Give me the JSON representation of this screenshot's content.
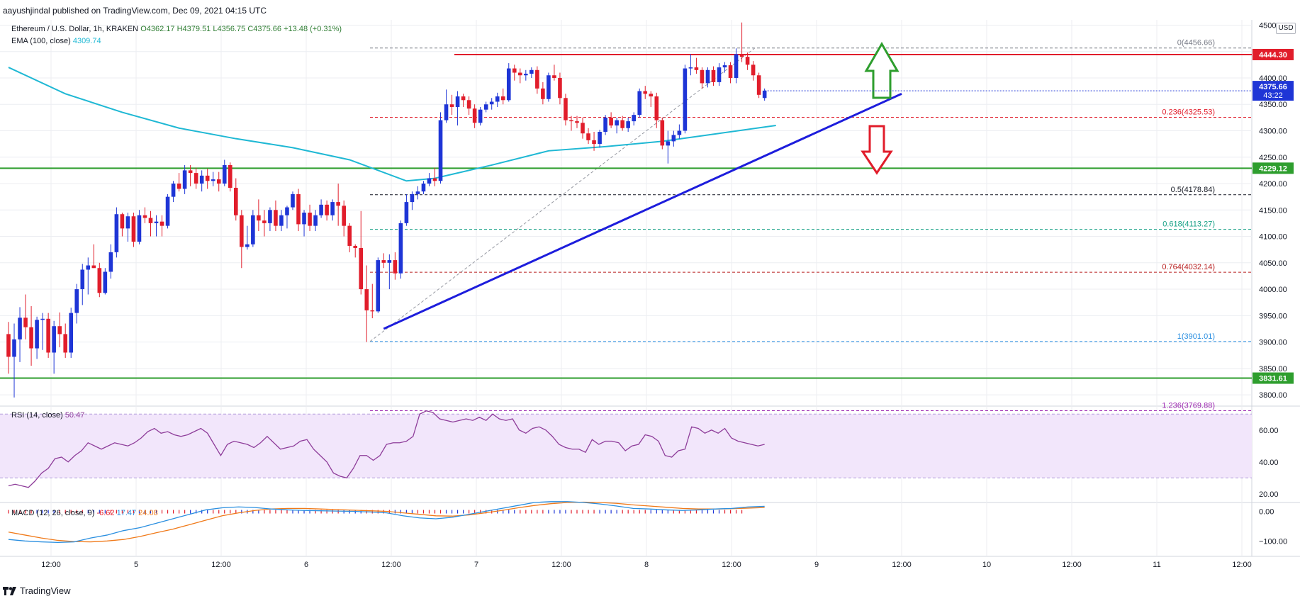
{
  "page": {
    "publisher_line": "aayushjindal published on TradingView.com, Dec 09, 2021 04:15 UTC",
    "watermark": "TradingView",
    "currency_label": "USD"
  },
  "header": {
    "symbol": "Ethereum / U.S. Dollar, 1h, KRAKEN",
    "open": "O4362.17",
    "high": "H4379.51",
    "low": "L4356.75",
    "close": "C4375.66",
    "change": "+13.48 (+0.31%)",
    "ema_label": "EMA (100, close)",
    "ema_value": "4309.74",
    "rsi_label": "RSI (14, close)",
    "rsi_value": "50.47",
    "macd_label": "MACD (12, 26, close, 9)",
    "macd_hist": "-6.62",
    "macd_value": "17.47",
    "macd_signal": "24.08"
  },
  "colors": {
    "bull": "#1e35d6",
    "bear": "#e11d2b",
    "ema": "#1fb8d4",
    "trendline": "#1d1ddc",
    "horizontal_support": "#2e9e2e",
    "resistance": "#e11d2b",
    "rsi_line": "#8e3d9a",
    "rsi_band": "#f2e6fb",
    "macd_line": "#2a8fe0",
    "signal_line": "#f07a1a"
  },
  "chart_data": {
    "type": "candlestick",
    "symbol": "ETHUSD",
    "interval": "1h",
    "ylim": [
      3780,
      4510
    ],
    "y_ticks": [
      3800,
      3850,
      3900,
      3950,
      4000,
      4050,
      4100,
      4150,
      4200,
      4250,
      4300,
      4350,
      4400,
      4450,
      4500
    ],
    "x_ticks": [
      "12:00",
      "5",
      "12:00",
      "6",
      "12:00",
      "7",
      "12:00",
      "8",
      "12:00",
      "9",
      "12:00",
      "10",
      "12:00",
      "11",
      "12:00"
    ],
    "candles": [
      {
        "o": 3915,
        "h": 3938,
        "l": 3840,
        "c": 3872
      },
      {
        "o": 3872,
        "h": 3935,
        "l": 3795,
        "c": 3905
      },
      {
        "o": 3905,
        "h": 3966,
        "l": 3862,
        "c": 3946
      },
      {
        "o": 3946,
        "h": 3990,
        "l": 3905,
        "c": 3928
      },
      {
        "o": 3928,
        "h": 3968,
        "l": 3855,
        "c": 3888
      },
      {
        "o": 3888,
        "h": 3948,
        "l": 3868,
        "c": 3942
      },
      {
        "o": 3942,
        "h": 3955,
        "l": 3885,
        "c": 3944
      },
      {
        "o": 3944,
        "h": 3955,
        "l": 3870,
        "c": 3880
      },
      {
        "o": 3880,
        "h": 3940,
        "l": 3840,
        "c": 3930
      },
      {
        "o": 3930,
        "h": 3956,
        "l": 3890,
        "c": 3915
      },
      {
        "o": 3915,
        "h": 3935,
        "l": 3870,
        "c": 3880
      },
      {
        "o": 3880,
        "h": 3965,
        "l": 3870,
        "c": 3955
      },
      {
        "o": 3955,
        "h": 4010,
        "l": 3935,
        "c": 4000
      },
      {
        "o": 4000,
        "h": 4048,
        "l": 3970,
        "c": 4037
      },
      {
        "o": 4037,
        "h": 4060,
        "l": 3990,
        "c": 4045
      },
      {
        "o": 4045,
        "h": 4085,
        "l": 4040,
        "c": 4040
      },
      {
        "o": 4040,
        "h": 4050,
        "l": 3985,
        "c": 3993
      },
      {
        "o": 3993,
        "h": 4040,
        "l": 3990,
        "c": 4033
      },
      {
        "o": 4033,
        "h": 4085,
        "l": 4020,
        "c": 4070
      },
      {
        "o": 4070,
        "h": 4155,
        "l": 4060,
        "c": 4142
      },
      {
        "o": 4142,
        "h": 4145,
        "l": 4100,
        "c": 4115
      },
      {
        "o": 4115,
        "h": 4145,
        "l": 4090,
        "c": 4138
      },
      {
        "o": 4138,
        "h": 4145,
        "l": 4080,
        "c": 4090
      },
      {
        "o": 4090,
        "h": 4150,
        "l": 4085,
        "c": 4140
      },
      {
        "o": 4140,
        "h": 4155,
        "l": 4125,
        "c": 4135
      },
      {
        "o": 4135,
        "h": 4148,
        "l": 4100,
        "c": 4125
      },
      {
        "o": 4125,
        "h": 4140,
        "l": 4100,
        "c": 4128
      },
      {
        "o": 4128,
        "h": 4140,
        "l": 4100,
        "c": 4120
      },
      {
        "o": 4120,
        "h": 4180,
        "l": 4115,
        "c": 4175
      },
      {
        "o": 4175,
        "h": 4205,
        "l": 4165,
        "c": 4200
      },
      {
        "o": 4200,
        "h": 4220,
        "l": 4185,
        "c": 4190
      },
      {
        "o": 4190,
        "h": 4235,
        "l": 4180,
        "c": 4225
      },
      {
        "o": 4225,
        "h": 4235,
        "l": 4195,
        "c": 4220
      },
      {
        "o": 4220,
        "h": 4230,
        "l": 4190,
        "c": 4200
      },
      {
        "o": 4200,
        "h": 4225,
        "l": 4185,
        "c": 4215
      },
      {
        "o": 4215,
        "h": 4228,
        "l": 4190,
        "c": 4205
      },
      {
        "o": 4205,
        "h": 4222,
        "l": 4195,
        "c": 4208
      },
      {
        "o": 4208,
        "h": 4222,
        "l": 4185,
        "c": 4200
      },
      {
        "o": 4200,
        "h": 4245,
        "l": 4195,
        "c": 4235
      },
      {
        "o": 4235,
        "h": 4240,
        "l": 4185,
        "c": 4192
      },
      {
        "o": 4192,
        "h": 4210,
        "l": 4130,
        "c": 4140
      },
      {
        "o": 4140,
        "h": 4150,
        "l": 4040,
        "c": 4080
      },
      {
        "o": 4080,
        "h": 4120,
        "l": 4075,
        "c": 4085
      },
      {
        "o": 4085,
        "h": 4150,
        "l": 4080,
        "c": 4140
      },
      {
        "o": 4140,
        "h": 4170,
        "l": 4110,
        "c": 4130
      },
      {
        "o": 4130,
        "h": 4150,
        "l": 4100,
        "c": 4125
      },
      {
        "o": 4125,
        "h": 4155,
        "l": 4110,
        "c": 4150
      },
      {
        "o": 4150,
        "h": 4168,
        "l": 4110,
        "c": 4120
      },
      {
        "o": 4120,
        "h": 4150,
        "l": 4110,
        "c": 4140
      },
      {
        "o": 4140,
        "h": 4158,
        "l": 4115,
        "c": 4155
      },
      {
        "o": 4155,
        "h": 4185,
        "l": 4150,
        "c": 4180
      },
      {
        "o": 4180,
        "h": 4190,
        "l": 4110,
        "c": 4123
      },
      {
        "o": 4123,
        "h": 4150,
        "l": 4100,
        "c": 4145
      },
      {
        "o": 4145,
        "h": 4160,
        "l": 4110,
        "c": 4120
      },
      {
        "o": 4120,
        "h": 4150,
        "l": 4110,
        "c": 4140
      },
      {
        "o": 4140,
        "h": 4170,
        "l": 4135,
        "c": 4160
      },
      {
        "o": 4160,
        "h": 4168,
        "l": 4130,
        "c": 4140
      },
      {
        "o": 4140,
        "h": 4170,
        "l": 4130,
        "c": 4165
      },
      {
        "o": 4165,
        "h": 4200,
        "l": 4120,
        "c": 4158
      },
      {
        "o": 4158,
        "h": 4168,
        "l": 4100,
        "c": 4120
      },
      {
        "o": 4120,
        "h": 4125,
        "l": 4070,
        "c": 4082
      },
      {
        "o": 4082,
        "h": 4085,
        "l": 4060,
        "c": 4078
      },
      {
        "o": 4078,
        "h": 4148,
        "l": 3990,
        "c": 4000
      },
      {
        "o": 4000,
        "h": 4045,
        "l": 3900,
        "c": 3960
      },
      {
        "o": 3960,
        "h": 4010,
        "l": 3945,
        "c": 3958
      },
      {
        "o": 3958,
        "h": 4060,
        "l": 3955,
        "c": 4055
      },
      {
        "o": 4055,
        "h": 4068,
        "l": 4040,
        "c": 4050
      },
      {
        "o": 4050,
        "h": 4066,
        "l": 4000,
        "c": 4055
      },
      {
        "o": 4055,
        "h": 4070,
        "l": 4018,
        "c": 4030
      },
      {
        "o": 4030,
        "h": 4130,
        "l": 4020,
        "c": 4125
      },
      {
        "o": 4125,
        "h": 4180,
        "l": 4120,
        "c": 4165
      },
      {
        "o": 4165,
        "h": 4185,
        "l": 4150,
        "c": 4180
      },
      {
        "o": 4180,
        "h": 4195,
        "l": 4170,
        "c": 4185
      },
      {
        "o": 4185,
        "h": 4205,
        "l": 4180,
        "c": 4200
      },
      {
        "o": 4200,
        "h": 4220,
        "l": 4195,
        "c": 4210
      },
      {
        "o": 4210,
        "h": 4230,
        "l": 4195,
        "c": 4205
      },
      {
        "o": 4205,
        "h": 4335,
        "l": 4200,
        "c": 4320
      },
      {
        "o": 4320,
        "h": 4378,
        "l": 4315,
        "c": 4350
      },
      {
        "o": 4350,
        "h": 4368,
        "l": 4330,
        "c": 4345
      },
      {
        "o": 4345,
        "h": 4375,
        "l": 4310,
        "c": 4365
      },
      {
        "o": 4365,
        "h": 4370,
        "l": 4345,
        "c": 4358
      },
      {
        "o": 4358,
        "h": 4365,
        "l": 4330,
        "c": 4342
      },
      {
        "o": 4342,
        "h": 4350,
        "l": 4305,
        "c": 4315
      },
      {
        "o": 4315,
        "h": 4345,
        "l": 4310,
        "c": 4340
      },
      {
        "o": 4340,
        "h": 4355,
        "l": 4335,
        "c": 4350
      },
      {
        "o": 4350,
        "h": 4362,
        "l": 4340,
        "c": 4355
      },
      {
        "o": 4355,
        "h": 4372,
        "l": 4345,
        "c": 4365
      },
      {
        "o": 4365,
        "h": 4380,
        "l": 4350,
        "c": 4358
      },
      {
        "o": 4358,
        "h": 4428,
        "l": 4355,
        "c": 4418
      },
      {
        "o": 4418,
        "h": 4425,
        "l": 4395,
        "c": 4410
      },
      {
        "o": 4410,
        "h": 4418,
        "l": 4390,
        "c": 4405
      },
      {
        "o": 4405,
        "h": 4415,
        "l": 4395,
        "c": 4408
      },
      {
        "o": 4408,
        "h": 4420,
        "l": 4400,
        "c": 4415
      },
      {
        "o": 4415,
        "h": 4422,
        "l": 4370,
        "c": 4380
      },
      {
        "o": 4380,
        "h": 4392,
        "l": 4350,
        "c": 4360
      },
      {
        "o": 4360,
        "h": 4410,
        "l": 4355,
        "c": 4405
      },
      {
        "o": 4405,
        "h": 4425,
        "l": 4395,
        "c": 4400
      },
      {
        "o": 4400,
        "h": 4410,
        "l": 4350,
        "c": 4362
      },
      {
        "o": 4362,
        "h": 4370,
        "l": 4310,
        "c": 4320
      },
      {
        "o": 4320,
        "h": 4328,
        "l": 4300,
        "c": 4318
      },
      {
        "o": 4318,
        "h": 4328,
        "l": 4305,
        "c": 4315
      },
      {
        "o": 4315,
        "h": 4325,
        "l": 4285,
        "c": 4295
      },
      {
        "o": 4295,
        "h": 4305,
        "l": 4275,
        "c": 4282
      },
      {
        "o": 4282,
        "h": 4298,
        "l": 4262,
        "c": 4275
      },
      {
        "o": 4275,
        "h": 4302,
        "l": 4268,
        "c": 4298
      },
      {
        "o": 4298,
        "h": 4330,
        "l": 4292,
        "c": 4325
      },
      {
        "o": 4325,
        "h": 4335,
        "l": 4305,
        "c": 4310
      },
      {
        "o": 4310,
        "h": 4325,
        "l": 4295,
        "c": 4320
      },
      {
        "o": 4320,
        "h": 4328,
        "l": 4300,
        "c": 4305
      },
      {
        "o": 4305,
        "h": 4325,
        "l": 4298,
        "c": 4318
      },
      {
        "o": 4318,
        "h": 4335,
        "l": 4310,
        "c": 4330
      },
      {
        "o": 4330,
        "h": 4380,
        "l": 4325,
        "c": 4375
      },
      {
        "o": 4375,
        "h": 4385,
        "l": 4360,
        "c": 4370
      },
      {
        "o": 4370,
        "h": 4375,
        "l": 4345,
        "c": 4365
      },
      {
        "o": 4365,
        "h": 4372,
        "l": 4305,
        "c": 4320
      },
      {
        "o": 4320,
        "h": 4325,
        "l": 4265,
        "c": 4272
      },
      {
        "o": 4272,
        "h": 4300,
        "l": 4238,
        "c": 4280
      },
      {
        "o": 4280,
        "h": 4300,
        "l": 4270,
        "c": 4292
      },
      {
        "o": 4292,
        "h": 4312,
        "l": 4285,
        "c": 4300
      },
      {
        "o": 4300,
        "h": 4425,
        "l": 4295,
        "c": 4418
      },
      {
        "o": 4418,
        "h": 4445,
        "l": 4405,
        "c": 4420
      },
      {
        "o": 4420,
        "h": 4438,
        "l": 4408,
        "c": 4415
      },
      {
        "o": 4415,
        "h": 4420,
        "l": 4380,
        "c": 4390
      },
      {
        "o": 4390,
        "h": 4420,
        "l": 4382,
        "c": 4415
      },
      {
        "o": 4415,
        "h": 4422,
        "l": 4385,
        "c": 4392
      },
      {
        "o": 4392,
        "h": 4428,
        "l": 4385,
        "c": 4420
      },
      {
        "o": 4420,
        "h": 4430,
        "l": 4410,
        "c": 4424
      },
      {
        "o": 4424,
        "h": 4430,
        "l": 4390,
        "c": 4400
      },
      {
        "o": 4400,
        "h": 4456,
        "l": 4390,
        "c": 4445
      },
      {
        "o": 4445,
        "h": 4505,
        "l": 4430,
        "c": 4440
      },
      {
        "o": 4440,
        "h": 4448,
        "l": 4415,
        "c": 4425
      },
      {
        "o": 4425,
        "h": 4432,
        "l": 4395,
        "c": 4405
      },
      {
        "o": 4405,
        "h": 4410,
        "l": 4362,
        "c": 4368
      },
      {
        "o": 4362,
        "h": 4380,
        "l": 4357,
        "c": 4376
      }
    ],
    "ema_100": [
      {
        "i": 0,
        "v": 4420
      },
      {
        "i": 10,
        "v": 4370
      },
      {
        "i": 20,
        "v": 4335
      },
      {
        "i": 30,
        "v": 4305
      },
      {
        "i": 40,
        "v": 4285
      },
      {
        "i": 50,
        "v": 4268
      },
      {
        "i": 60,
        "v": 4245
      },
      {
        "i": 70,
        "v": 4205
      },
      {
        "i": 75,
        "v": 4210
      },
      {
        "i": 85,
        "v": 4235
      },
      {
        "i": 95,
        "v": 4262
      },
      {
        "i": 105,
        "v": 4270
      },
      {
        "i": 115,
        "v": 4280
      },
      {
        "i": 125,
        "v": 4295
      },
      {
        "i": 135,
        "v": 4310
      }
    ],
    "fibonacci": [
      {
        "level": "0",
        "value": 4456.66,
        "label": "0(4456.66)",
        "color": "#787b86"
      },
      {
        "level": "0.236",
        "value": 4325.53,
        "label": "0.236(4325.53)",
        "color": "#e11d2b"
      },
      {
        "level": "0.5",
        "value": 4178.84,
        "label": "0.5(4178.84)",
        "color": "#131722"
      },
      {
        "level": "0.618",
        "value": 4113.27,
        "label": "0.618(4113.27)",
        "color": "#16a085"
      },
      {
        "level": "0.764",
        "value": 4032.14,
        "label": "0.764(4032.14)",
        "color": "#b71c1c"
      },
      {
        "level": "1",
        "value": 3901.01,
        "label": "1(3901.01)",
        "color": "#2a8fe0"
      },
      {
        "level": "1.236",
        "value": 3769.88,
        "label": "1.236(3769.88)",
        "color": "#9c27b0"
      }
    ],
    "horizontal_lines": [
      {
        "value": 4444.3,
        "label": "4444.30",
        "color": "#e11d2b",
        "kind": "resistance"
      },
      {
        "value": 4229.12,
        "label": "4229.12",
        "color": "#2e9e2e",
        "kind": "support"
      },
      {
        "value": 3831.61,
        "label": "3831.61",
        "color": "#2e9e2e",
        "kind": "support"
      }
    ],
    "last_price": {
      "value": 4375.66,
      "label": "4375.66",
      "sublabel": "43:22",
      "color": "#1e35d6"
    },
    "trendline": {
      "from": {
        "i": 63,
        "v": 3925
      },
      "to": {
        "i": 150,
        "v": 4370
      }
    },
    "rsi": {
      "ylim": [
        15,
        75
      ],
      "ticks": [
        20,
        40,
        60
      ],
      "band": [
        30,
        70
      ],
      "values": [
        25,
        26,
        25,
        24,
        28,
        33,
        36,
        42,
        43,
        40,
        44,
        47,
        52,
        50,
        48,
        50,
        52,
        51,
        50,
        52,
        55,
        59,
        61,
        58,
        59,
        57,
        56,
        57,
        59,
        61,
        58,
        51,
        44,
        51,
        53,
        52,
        51,
        49,
        52,
        56,
        52,
        48,
        49,
        50,
        53,
        54,
        48,
        44,
        40,
        33,
        31,
        30,
        36,
        44,
        44,
        41,
        44,
        51,
        52,
        52,
        53,
        56,
        70,
        72,
        71,
        67,
        66,
        65,
        66,
        67,
        66,
        68,
        66,
        70,
        67,
        66,
        67,
        60,
        58,
        61,
        62,
        60,
        56,
        51,
        49,
        48,
        48,
        46,
        54,
        51,
        53,
        53,
        52,
        47,
        50,
        51,
        57,
        56,
        53,
        44,
        43,
        47,
        48,
        62,
        61,
        58,
        60,
        58,
        61,
        55,
        53,
        52,
        51,
        50,
        51
      ],
      "value_label": "50.47"
    },
    "macd": {
      "ylim": [
        -140,
        30
      ],
      "ticks": [
        0,
        -100
      ],
      "macd": [
        -95,
        -100,
        -103,
        -105,
        -103,
        -90,
        -80,
        -65,
        -55,
        -40,
        -25,
        -10,
        5,
        12,
        15,
        13,
        8,
        5,
        3,
        2,
        1,
        0,
        -2,
        -5,
        -15,
        -22,
        -25,
        -20,
        -10,
        0,
        10,
        20,
        30,
        33,
        33,
        30,
        25,
        18,
        10,
        8,
        5,
        3,
        5,
        8,
        10,
        15,
        17
      ],
      "signal": [
        -70,
        -80,
        -90,
        -98,
        -102,
        -103,
        -100,
        -95,
        -85,
        -72,
        -60,
        -45,
        -30,
        -15,
        -5,
        3,
        8,
        10,
        10,
        8,
        6,
        4,
        2,
        0,
        -5,
        -10,
        -15,
        -16,
        -12,
        -5,
        3,
        12,
        20,
        26,
        30,
        31,
        30,
        27,
        22,
        18,
        14,
        10,
        8,
        8,
        9,
        11,
        13
      ],
      "ticks_labels": [
        "0.00",
        "−100.00"
      ]
    }
  }
}
